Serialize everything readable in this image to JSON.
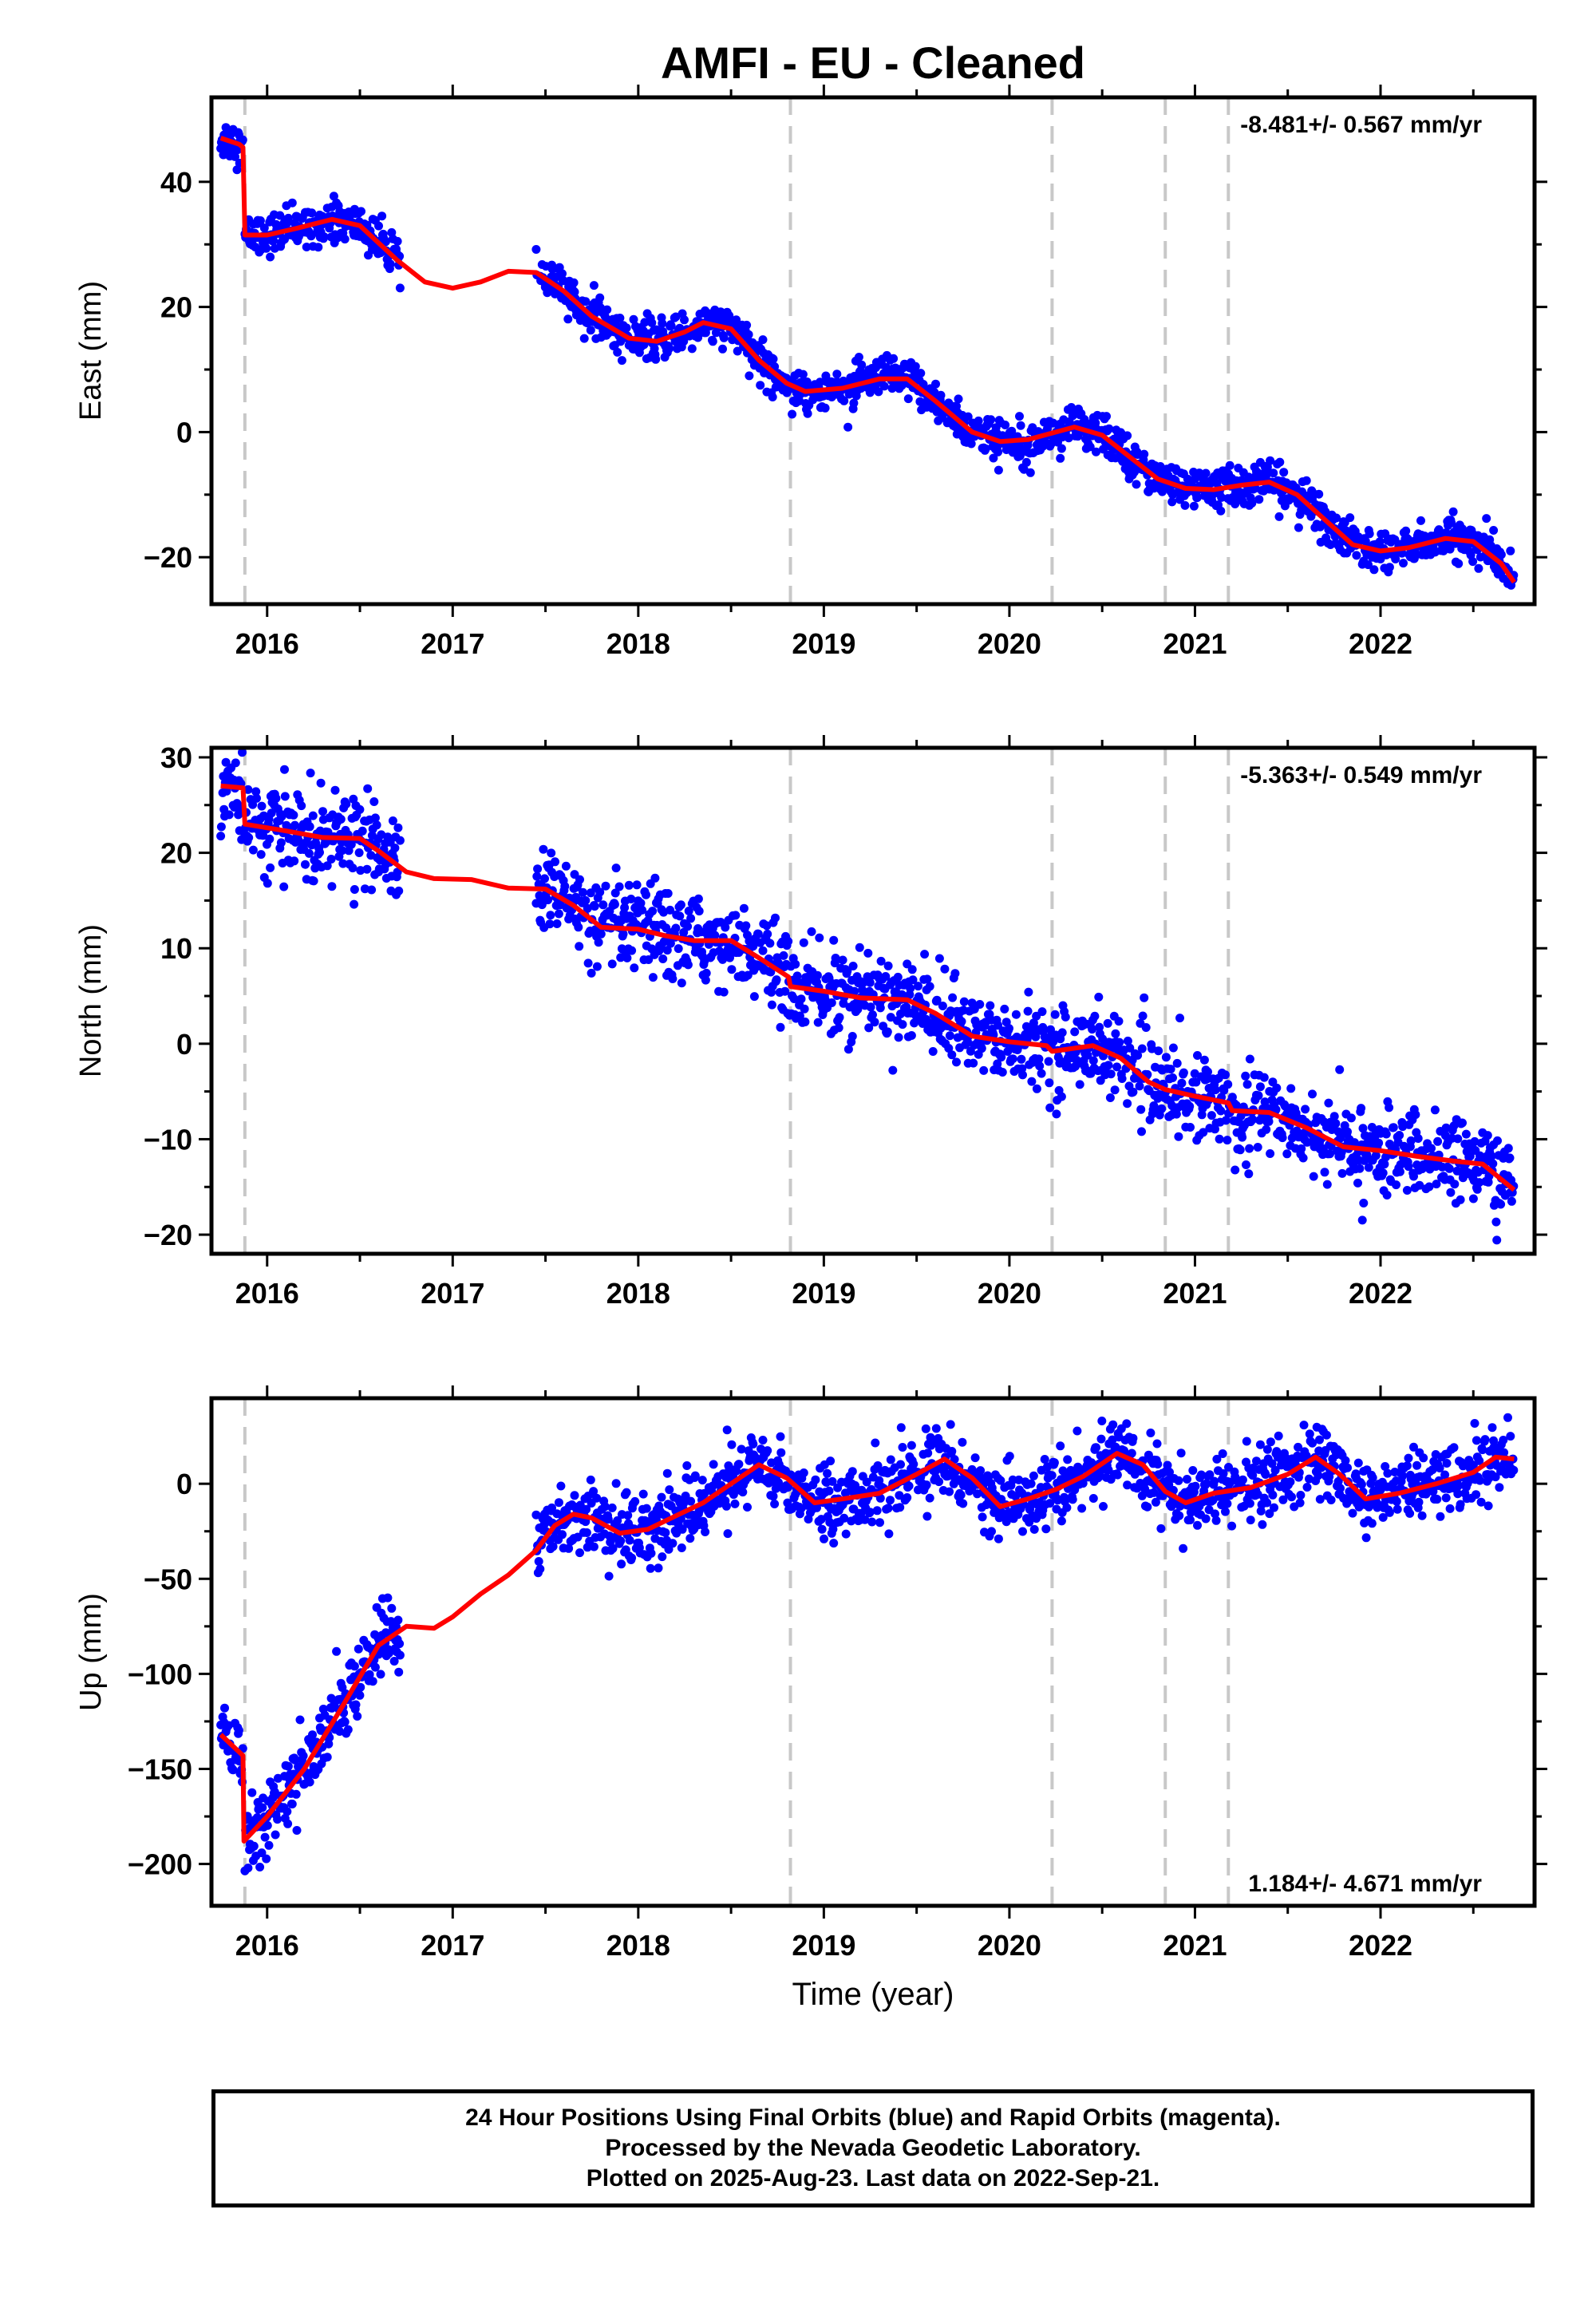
{
  "title": "AMFI  - EU - Cleaned",
  "x_axis_label": "Time (year)",
  "colors": {
    "final_points": "#0000ff",
    "model": "#ff0000",
    "event_lines": "#c8c8c8",
    "frame": "#000000"
  },
  "footer": {
    "line1": "24 Hour Positions Using Final Orbits (blue) and Rapid Orbits (magenta).",
    "line2": "Processed by the Nevada Geodetic Laboratory.",
    "line3": "Plotted on 2025-Aug-23. Last data on 2022-Sep-21."
  },
  "chart_data": [
    {
      "type": "scatter",
      "component": "east",
      "title": "AMFI  - EU - Cleaned",
      "xlabel": "",
      "ylabel": "East (mm)",
      "rate_text": "-8.481+/- 0.567 mm/yr",
      "rate_position": "top-right",
      "xlim": [
        2015.7,
        2022.83
      ],
      "ylim": [
        -27.5,
        53.5
      ],
      "x_ticks": [
        2016,
        2017,
        2018,
        2019,
        2020,
        2021,
        2022
      ],
      "x_tick_labels": [
        "2016",
        "2017",
        "2018",
        "2019",
        "2020",
        "2021",
        "2022"
      ],
      "y_ticks": [
        -20,
        0,
        20,
        40
      ],
      "y_tick_labels": [
        "−20",
        "0",
        "20",
        "40"
      ],
      "event_lines": [
        2015.88,
        2018.82,
        2020.23,
        2020.84,
        2021.18
      ],
      "grid": false,
      "series": [
        {
          "kind": "points",
          "color": "#0000ff",
          "segments": [
            [
              2015.75,
              2015.87
            ],
            [
              2015.88,
              2016.72
            ],
            [
              2017.45,
              2022.72
            ]
          ],
          "observation_noise_mm": 1.6
        },
        {
          "kind": "model",
          "color": "#ff0000",
          "points": [
            [
              2015.75,
              47
            ],
            [
              2015.85,
              46
            ],
            [
              2015.87,
              45.5
            ],
            [
              2015.88,
              31.5
            ],
            [
              2016.0,
              31.5
            ],
            [
              2016.15,
              32.5
            ],
            [
              2016.35,
              34
            ],
            [
              2016.5,
              33
            ],
            [
              2016.7,
              27.5
            ],
            [
              2016.85,
              24
            ],
            [
              2017.0,
              23
            ],
            [
              2017.15,
              24
            ],
            [
              2017.3,
              25.7
            ],
            [
              2017.45,
              25.5
            ],
            [
              2017.6,
              22.5
            ],
            [
              2017.75,
              18.5
            ],
            [
              2017.95,
              15
            ],
            [
              2018.1,
              14.5
            ],
            [
              2018.25,
              16
            ],
            [
              2018.35,
              17.5
            ],
            [
              2018.5,
              16.5
            ],
            [
              2018.65,
              11.5
            ],
            [
              2018.8,
              7.8
            ],
            [
              2018.9,
              6.5
            ],
            [
              2019.1,
              7
            ],
            [
              2019.3,
              8.5
            ],
            [
              2019.45,
              8.5
            ],
            [
              2019.6,
              5
            ],
            [
              2019.8,
              0
            ],
            [
              2019.95,
              -1.5
            ],
            [
              2020.1,
              -1.2
            ],
            [
              2020.25,
              0
            ],
            [
              2020.35,
              0.8
            ],
            [
              2020.5,
              -0.5
            ],
            [
              2020.65,
              -4
            ],
            [
              2020.8,
              -7.5
            ],
            [
              2020.95,
              -9
            ],
            [
              2021.1,
              -9.2
            ],
            [
              2021.25,
              -8.5
            ],
            [
              2021.4,
              -8
            ],
            [
              2021.55,
              -10
            ],
            [
              2021.7,
              -14
            ],
            [
              2021.85,
              -18
            ],
            [
              2022.0,
              -19
            ],
            [
              2022.15,
              -18.5
            ],
            [
              2022.35,
              -17
            ],
            [
              2022.5,
              -17.5
            ],
            [
              2022.65,
              -21
            ],
            [
              2022.72,
              -24
            ]
          ]
        }
      ]
    },
    {
      "type": "scatter",
      "component": "north",
      "xlabel": "",
      "ylabel": "North (mm)",
      "rate_text": "-5.363+/- 0.549 mm/yr",
      "rate_position": "top-right",
      "xlim": [
        2015.7,
        2022.83
      ],
      "ylim": [
        -22,
        31
      ],
      "x_ticks": [
        2016,
        2017,
        2018,
        2019,
        2020,
        2021,
        2022
      ],
      "x_tick_labels": [
        "2016",
        "2017",
        "2018",
        "2019",
        "2020",
        "2021",
        "2022"
      ],
      "y_ticks": [
        -20,
        -10,
        0,
        10,
        20,
        30
      ],
      "y_tick_labels": [
        "−20",
        "−10",
        "0",
        "10",
        "20",
        "30"
      ],
      "event_lines": [
        2015.88,
        2018.82,
        2020.23,
        2020.84,
        2021.18
      ],
      "grid": false,
      "series": [
        {
          "kind": "points",
          "color": "#0000ff",
          "segments": [
            [
              2015.75,
              2015.87
            ],
            [
              2015.88,
              2016.72
            ],
            [
              2017.45,
              2022.72
            ]
          ],
          "observation_noise_mm": 2.2
        },
        {
          "kind": "model",
          "color": "#ff0000",
          "points": [
            [
              2015.75,
              27
            ],
            [
              2015.87,
              26.8
            ],
            [
              2015.88,
              23
            ],
            [
              2016.1,
              22.3
            ],
            [
              2016.3,
              21.6
            ],
            [
              2016.5,
              21.5
            ],
            [
              2016.6,
              20.2
            ],
            [
              2016.75,
              18
            ],
            [
              2016.9,
              17.3
            ],
            [
              2017.1,
              17.2
            ],
            [
              2017.3,
              16.3
            ],
            [
              2017.5,
              16.2
            ],
            [
              2017.65,
              14.5
            ],
            [
              2017.8,
              12.2
            ],
            [
              2018.0,
              12
            ],
            [
              2018.15,
              11.3
            ],
            [
              2018.3,
              10.8
            ],
            [
              2018.5,
              10.8
            ],
            [
              2018.65,
              9
            ],
            [
              2018.81,
              7
            ],
            [
              2018.82,
              6
            ],
            [
              2019.0,
              5.5
            ],
            [
              2019.2,
              4.8
            ],
            [
              2019.45,
              4.6
            ],
            [
              2019.6,
              3.2
            ],
            [
              2019.8,
              0.8
            ],
            [
              2020.0,
              0.2
            ],
            [
              2020.2,
              -0.2
            ],
            [
              2020.23,
              -0.8
            ],
            [
              2020.45,
              -0.2
            ],
            [
              2020.6,
              -1.5
            ],
            [
              2020.75,
              -4
            ],
            [
              2020.84,
              -4.8
            ],
            [
              2021.0,
              -5.5
            ],
            [
              2021.18,
              -6.2
            ],
            [
              2021.2,
              -7
            ],
            [
              2021.4,
              -7.2
            ],
            [
              2021.6,
              -8.8
            ],
            [
              2021.8,
              -10.8
            ],
            [
              2022.0,
              -11.2
            ],
            [
              2022.2,
              -11.8
            ],
            [
              2022.4,
              -12.3
            ],
            [
              2022.55,
              -12.6
            ],
            [
              2022.72,
              -15.3
            ]
          ]
        }
      ]
    },
    {
      "type": "scatter",
      "component": "up",
      "xlabel": "Time (year)",
      "ylabel": "Up (mm)",
      "rate_text": "1.184+/- 4.671 mm/yr",
      "rate_position": "bottom-right",
      "xlim": [
        2015.7,
        2022.83
      ],
      "ylim": [
        -222,
        45
      ],
      "x_ticks": [
        2016,
        2017,
        2018,
        2019,
        2020,
        2021,
        2022
      ],
      "x_tick_labels": [
        "2016",
        "2017",
        "2018",
        "2019",
        "2020",
        "2021",
        "2022"
      ],
      "y_ticks": [
        -200,
        -150,
        -100,
        -50,
        0
      ],
      "y_tick_labels": [
        "−200",
        "−150",
        "−100",
        "−50",
        "0"
      ],
      "event_lines": [
        2015.88,
        2018.82,
        2020.23,
        2020.84,
        2021.18
      ],
      "grid": false,
      "series": [
        {
          "kind": "points",
          "color": "#0000ff",
          "segments": [
            [
              2015.75,
              2015.87
            ],
            [
              2015.88,
              2016.72
            ],
            [
              2017.45,
              2022.72
            ]
          ],
          "observation_noise_mm": 9
        },
        {
          "kind": "model",
          "color": "#ff0000",
          "points": [
            [
              2015.75,
              -132
            ],
            [
              2015.87,
              -143
            ],
            [
              2015.875,
              -188
            ],
            [
              2016.0,
              -175
            ],
            [
              2016.2,
              -150
            ],
            [
              2016.4,
              -118
            ],
            [
              2016.6,
              -85
            ],
            [
              2016.75,
              -75
            ],
            [
              2016.9,
              -76
            ],
            [
              2017.0,
              -70
            ],
            [
              2017.15,
              -58
            ],
            [
              2017.3,
              -48
            ],
            [
              2017.45,
              -35
            ],
            [
              2017.55,
              -22
            ],
            [
              2017.65,
              -16
            ],
            [
              2017.75,
              -18
            ],
            [
              2017.9,
              -26
            ],
            [
              2018.05,
              -24
            ],
            [
              2018.2,
              -17
            ],
            [
              2018.35,
              -10
            ],
            [
              2018.5,
              0
            ],
            [
              2018.65,
              10
            ],
            [
              2018.8,
              3
            ],
            [
              2018.95,
              -10
            ],
            [
              2019.1,
              -8
            ],
            [
              2019.3,
              -5
            ],
            [
              2019.5,
              5
            ],
            [
              2019.65,
              13
            ],
            [
              2019.8,
              3
            ],
            [
              2019.95,
              -12
            ],
            [
              2020.1,
              -8
            ],
            [
              2020.25,
              -3
            ],
            [
              2020.4,
              4
            ],
            [
              2020.58,
              16
            ],
            [
              2020.72,
              10
            ],
            [
              2020.84,
              -4
            ],
            [
              2020.95,
              -10
            ],
            [
              2021.1,
              -5
            ],
            [
              2021.3,
              -2
            ],
            [
              2021.5,
              5
            ],
            [
              2021.65,
              14
            ],
            [
              2021.78,
              5
            ],
            [
              2021.92,
              -8
            ],
            [
              2022.1,
              -5
            ],
            [
              2022.3,
              0
            ],
            [
              2022.5,
              6
            ],
            [
              2022.62,
              14
            ],
            [
              2022.72,
              13
            ]
          ]
        }
      ]
    }
  ]
}
